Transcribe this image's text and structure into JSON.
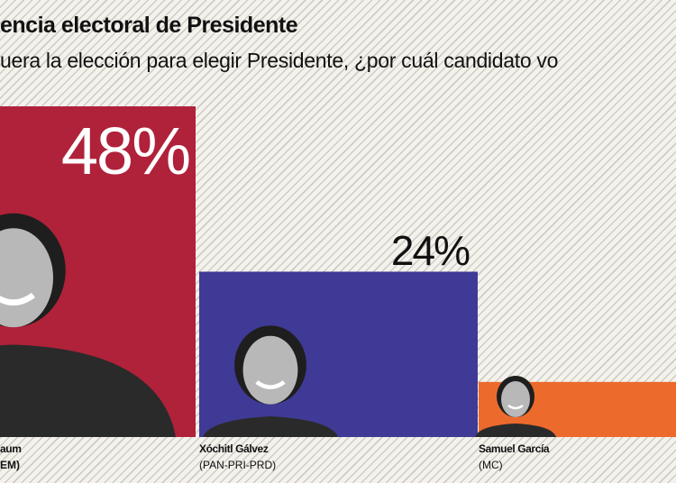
{
  "chart_data": {
    "type": "bar",
    "title": "encia electoral de Presidente",
    "subtitle": "uera la elección para elegir Presidente, ¿por cuál candidato vo",
    "categories": [
      "aum",
      "Xóchitl Gálvez",
      "Samuel García"
    ],
    "parties": [
      "EM)",
      "(PAN-PRI-PRD)",
      "(MC)"
    ],
    "values": [
      48,
      24,
      8
    ],
    "data_labels": [
      "48%",
      "24%",
      ""
    ],
    "colors": [
      "#b0213a",
      "#3f3a95",
      "#ec6a2c"
    ],
    "ylim": [
      0,
      48
    ],
    "grid": false
  }
}
